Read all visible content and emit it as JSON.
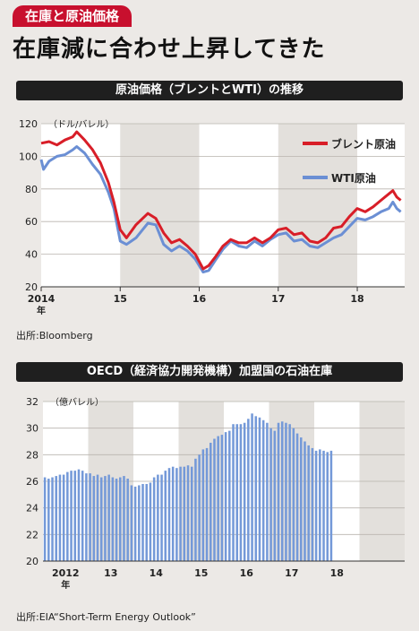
{
  "tag": "在庫と原油価格",
  "headline": "在庫減に合わせ上昇してきた",
  "chart1": {
    "bar_title": "原油価格（ブレントとWTI）の推移",
    "source": "出所:Bloomberg",
    "unit": "（ドル/バレル）"
  },
  "chart2": {
    "bar_title": "OECD（経済協力開発機構）加盟国の石油在庫",
    "source": "出所:EIA“Short-Term Energy Outlook”",
    "unit": "（億バレル）"
  },
  "chart_data": [
    {
      "type": "line",
      "title": "原油価格（ブレントとWTI）の推移",
      "ylabel": "（ドル/バレル）",
      "ylim": [
        20,
        120
      ],
      "yticks": [
        20,
        40,
        60,
        80,
        100,
        120
      ],
      "xlim": [
        2014.0,
        2018.6
      ],
      "xticks": [
        {
          "x": 2014,
          "label": "2014",
          "sub": "年"
        },
        {
          "x": 2015,
          "label": "15"
        },
        {
          "x": 2016,
          "label": "16"
        },
        {
          "x": 2017,
          "label": "17"
        },
        {
          "x": 2018,
          "label": "18"
        }
      ],
      "shaded_years": [
        [
          2015,
          2016
        ],
        [
          2017,
          2018
        ]
      ],
      "legend_position": "top-right",
      "series": [
        {
          "name": "ブレント原油",
          "color": "#d81e28",
          "x": [
            2014.0,
            2014.1,
            2014.2,
            2014.3,
            2014.4,
            2014.45,
            2014.55,
            2014.65,
            2014.75,
            2014.85,
            2014.92,
            2015.0,
            2015.08,
            2015.2,
            2015.35,
            2015.45,
            2015.55,
            2015.65,
            2015.75,
            2015.85,
            2015.95,
            2016.05,
            2016.12,
            2016.2,
            2016.3,
            2016.4,
            2016.5,
            2016.6,
            2016.7,
            2016.8,
            2016.9,
            2017.0,
            2017.1,
            2017.2,
            2017.3,
            2017.4,
            2017.5,
            2017.6,
            2017.7,
            2017.8,
            2017.9,
            2018.0,
            2018.1,
            2018.2,
            2018.3,
            2018.4,
            2018.45,
            2018.5,
            2018.55
          ],
          "y": [
            108,
            109,
            107,
            110,
            112,
            115,
            110,
            104,
            96,
            84,
            72,
            55,
            50,
            58,
            65,
            62,
            53,
            47,
            49,
            45,
            40,
            31,
            33,
            38,
            45,
            49,
            47,
            47,
            50,
            47,
            50,
            55,
            56,
            52,
            53,
            48,
            47,
            50,
            56,
            57,
            63,
            68,
            66,
            69,
            73,
            77,
            79,
            75,
            73
          ]
        },
        {
          "name": "WTI原油",
          "color": "#6b8fd4",
          "x": [
            2014.0,
            2014.03,
            2014.1,
            2014.2,
            2014.3,
            2014.4,
            2014.45,
            2014.55,
            2014.65,
            2014.75,
            2014.85,
            2014.92,
            2015.0,
            2015.08,
            2015.2,
            2015.35,
            2015.45,
            2015.55,
            2015.65,
            2015.75,
            2015.85,
            2015.95,
            2016.05,
            2016.12,
            2016.2,
            2016.3,
            2016.4,
            2016.5,
            2016.6,
            2016.7,
            2016.8,
            2016.9,
            2017.0,
            2017.1,
            2017.2,
            2017.3,
            2017.4,
            2017.5,
            2017.6,
            2017.7,
            2017.8,
            2017.9,
            2018.0,
            2018.1,
            2018.2,
            2018.3,
            2018.4,
            2018.45,
            2018.5,
            2018.55
          ],
          "y": [
            98,
            92,
            97,
            100,
            101,
            104,
            106,
            102,
            95,
            89,
            78,
            68,
            48,
            46,
            50,
            59,
            58,
            46,
            42,
            45,
            42,
            37,
            29,
            30,
            36,
            43,
            48,
            45,
            44,
            48,
            45,
            49,
            52,
            53,
            48,
            49,
            45,
            44,
            47,
            50,
            52,
            57,
            62,
            61,
            63,
            66,
            68,
            72,
            68,
            66
          ]
        }
      ]
    },
    {
      "type": "bar",
      "title": "OECD（経済協力開発機構）加盟国の石油在庫",
      "ylabel": "（億バレル）",
      "ylim": [
        20,
        32
      ],
      "yticks": [
        20,
        22,
        24,
        26,
        28,
        30,
        32
      ],
      "xticks": [
        {
          "index": 6,
          "label": "2012",
          "sub": "年"
        },
        {
          "index": 18,
          "label": "13"
        },
        {
          "index": 30,
          "label": "14"
        },
        {
          "index": 42,
          "label": "15"
        },
        {
          "index": 54,
          "label": "16"
        },
        {
          "index": 66,
          "label": "17"
        },
        {
          "index": 78,
          "label": "18"
        }
      ],
      "shaded_index_ranges": [
        [
          12,
          24
        ],
        [
          36,
          48
        ],
        [
          60,
          72
        ],
        [
          84,
          96
        ]
      ],
      "values": [
        26.3,
        26.2,
        26.3,
        26.4,
        26.5,
        26.5,
        26.7,
        26.8,
        26.8,
        26.9,
        26.8,
        26.6,
        26.6,
        26.4,
        26.5,
        26.3,
        26.4,
        26.5,
        26.3,
        26.2,
        26.3,
        26.4,
        26.2,
        25.7,
        25.6,
        25.7,
        25.8,
        25.8,
        25.9,
        26.3,
        26.5,
        26.5,
        26.8,
        27.0,
        27.1,
        27.0,
        27.1,
        27.1,
        27.2,
        27.1,
        27.7,
        28.0,
        28.4,
        28.5,
        28.9,
        29.2,
        29.4,
        29.5,
        29.7,
        29.8,
        30.3,
        30.3,
        30.3,
        30.4,
        30.7,
        31.1,
        30.9,
        30.8,
        30.6,
        30.4,
        30.0,
        29.8,
        30.4,
        30.5,
        30.4,
        30.3,
        30.0,
        29.6,
        29.3,
        29.0,
        28.7,
        28.5,
        28.3,
        28.4,
        28.3,
        28.2,
        28.3
      ]
    }
  ]
}
